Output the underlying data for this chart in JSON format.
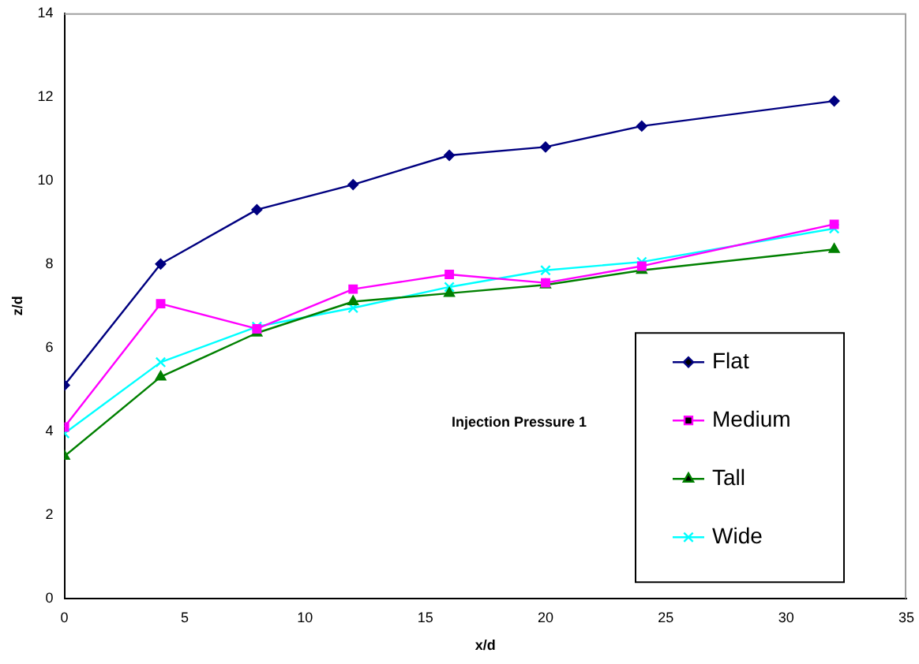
{
  "chart_data": {
    "type": "line",
    "xlabel": "x/d",
    "ylabel": "z/d",
    "x": [
      0,
      4,
      8,
      12,
      16,
      20,
      24,
      32
    ],
    "xlim": [
      0,
      35
    ],
    "xticks": [
      0,
      5,
      10,
      15,
      20,
      25,
      30,
      35
    ],
    "ylim": [
      0,
      14
    ],
    "yticks": [
      0,
      2,
      4,
      6,
      8,
      10,
      12,
      14
    ],
    "grid": false,
    "legend": "right",
    "annotations": [
      "Injection Pressure 1"
    ],
    "series": [
      {
        "name": "Flat",
        "color": "#000080",
        "marker": "diamond",
        "values": [
          5.1,
          8.0,
          9.3,
          9.9,
          10.6,
          10.8,
          11.3,
          11.9
        ]
      },
      {
        "name": "Medium",
        "color": "#ff00ff",
        "marker": "square",
        "values": [
          4.1,
          7.05,
          6.45,
          7.4,
          7.75,
          7.55,
          7.95,
          8.95
        ]
      },
      {
        "name": "Tall",
        "color": "#008000",
        "marker": "triangle",
        "values": [
          3.4,
          5.3,
          6.35,
          7.1,
          7.3,
          7.5,
          7.85,
          8.35
        ]
      },
      {
        "name": "Wide",
        "color": "#00ffff",
        "marker": "cross",
        "values": [
          3.95,
          5.65,
          6.5,
          6.95,
          7.45,
          7.85,
          8.05,
          8.85
        ]
      }
    ]
  }
}
